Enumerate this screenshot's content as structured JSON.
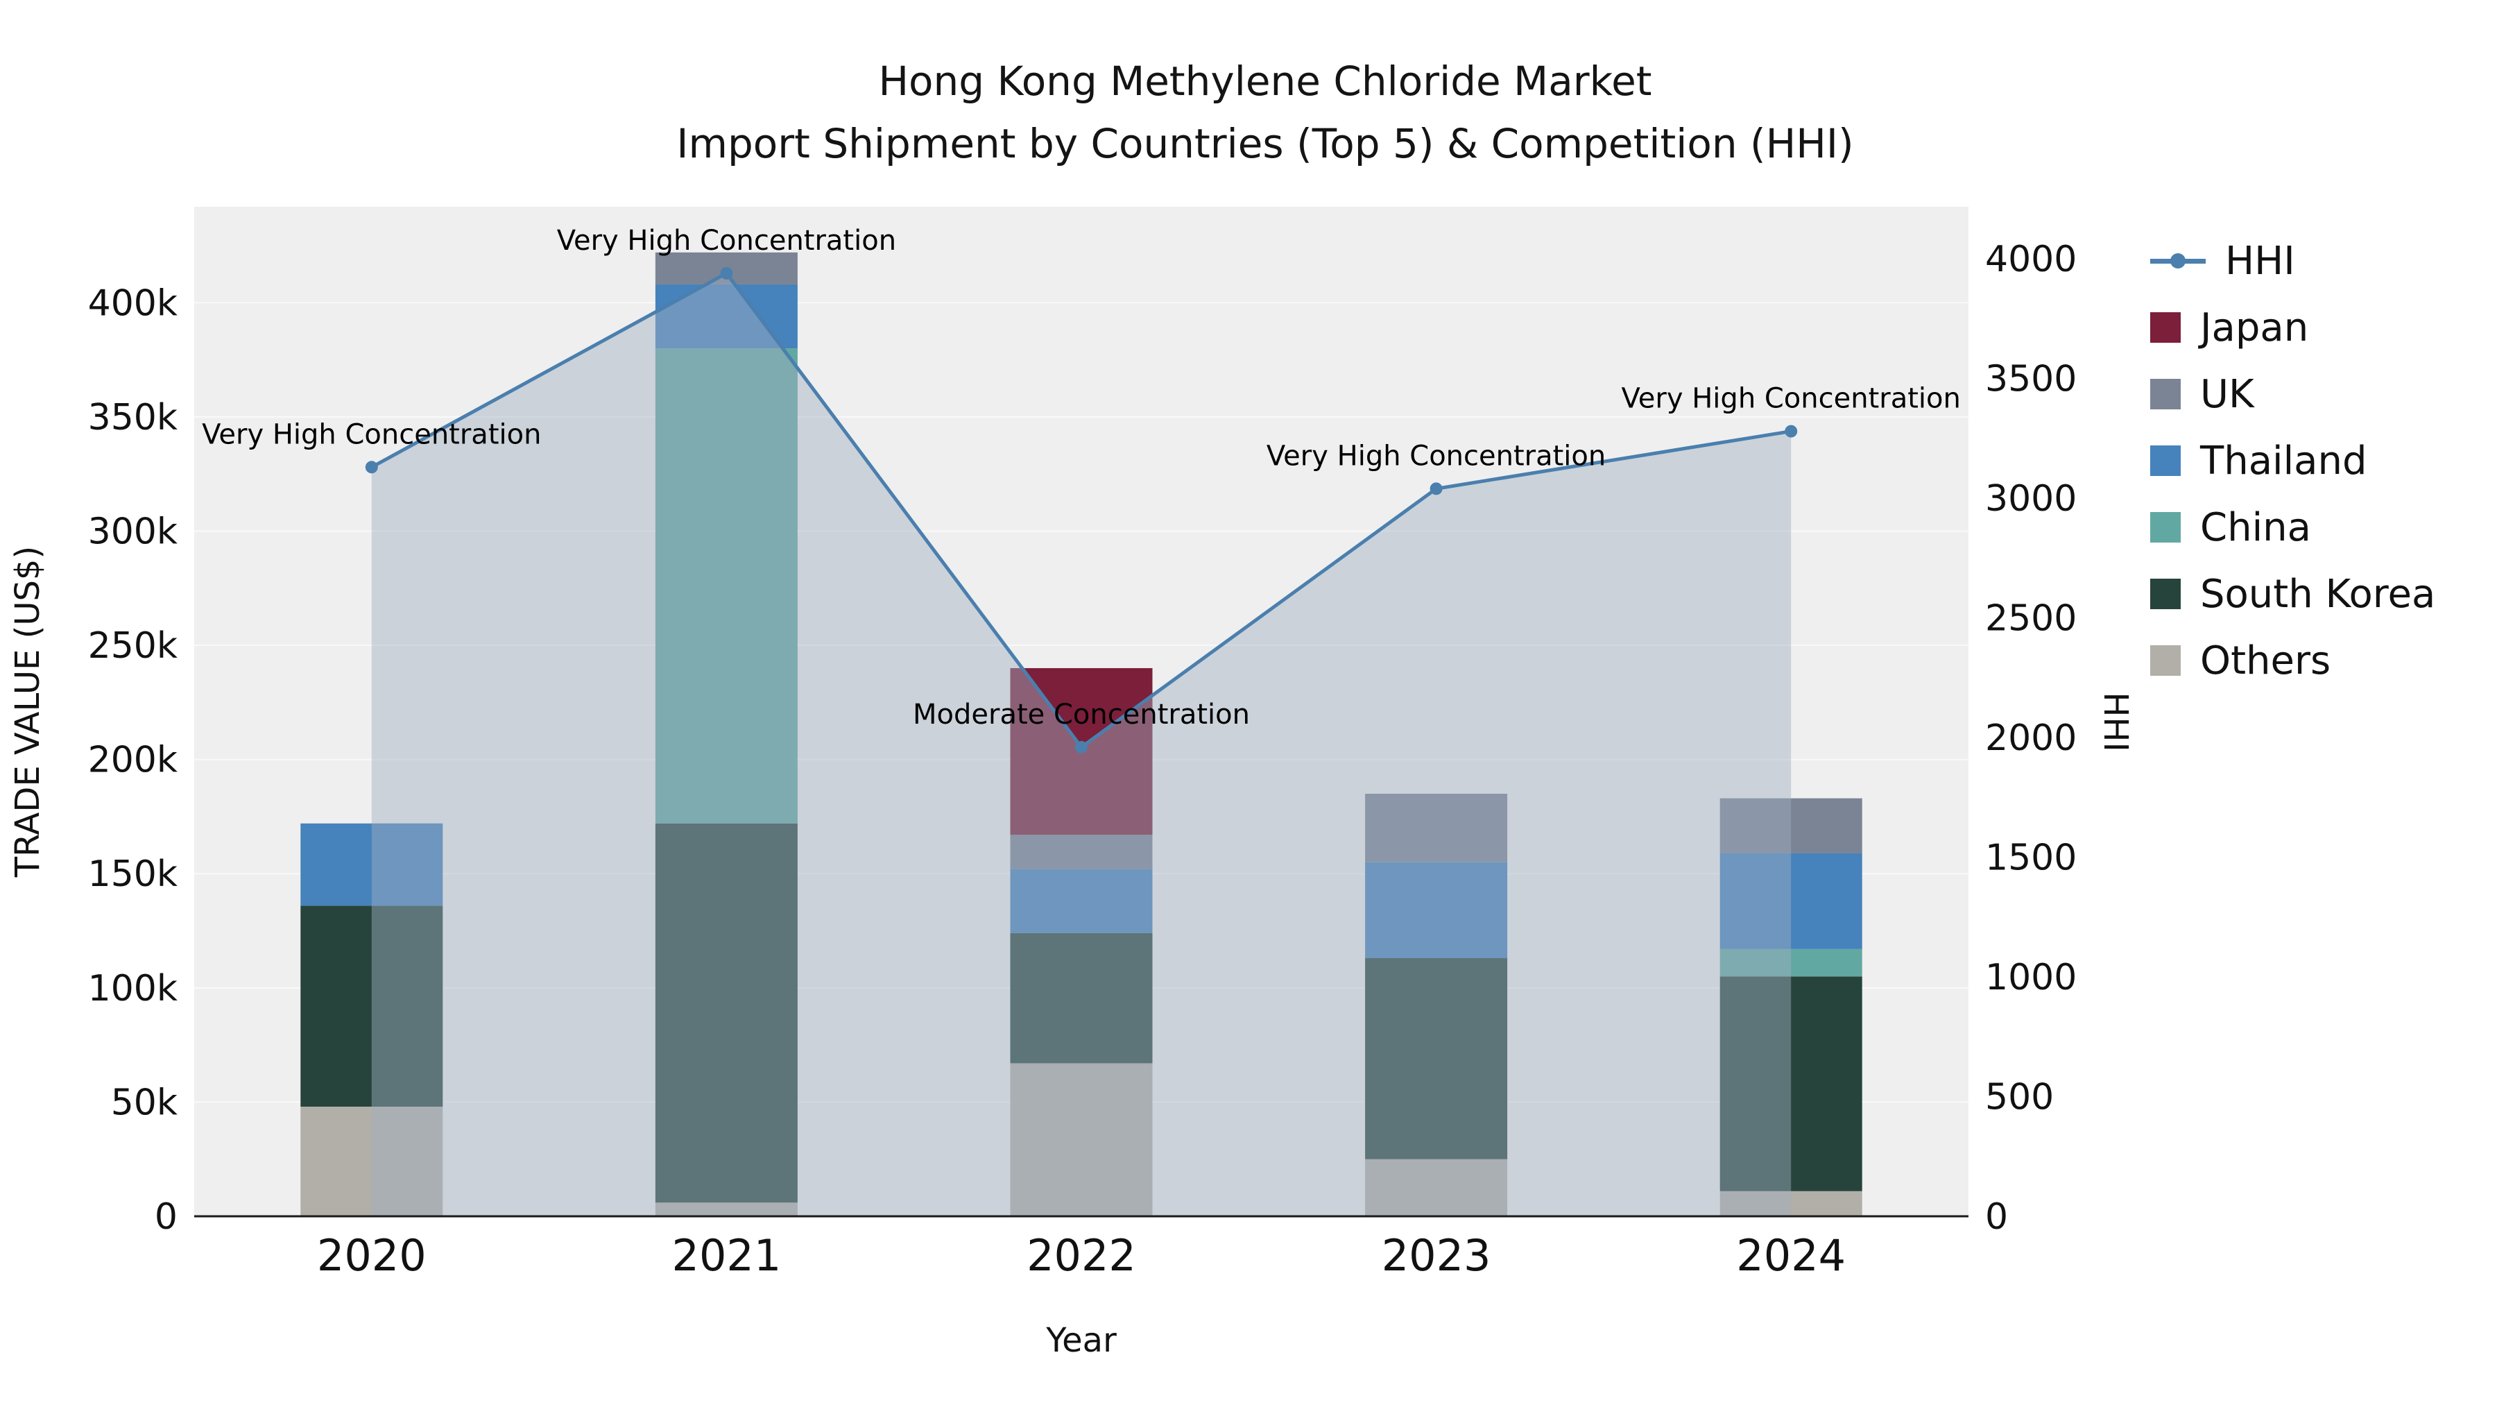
{
  "title": {
    "line1": "Hong Kong Methylene Chloride Market",
    "line2": "Import Shipment by Countries (Top 5) & Competition (HHI)"
  },
  "chart_data": {
    "type": "bar",
    "subtype": "stacked-bars-with-hhi-line-and-area",
    "categories": [
      "2020",
      "2021",
      "2022",
      "2023",
      "2024"
    ],
    "x_axis": {
      "title": "Year"
    },
    "left_axis": {
      "title": "TRADE VALUE (US$)",
      "tick_labels": [
        "0",
        "50k",
        "100k",
        "150k",
        "200k",
        "250k",
        "300k",
        "350k",
        "400k"
      ],
      "tick_values": [
        0,
        50000,
        100000,
        150000,
        200000,
        250000,
        300000,
        350000,
        400000
      ],
      "range": [
        0,
        442000
      ]
    },
    "right_axis": {
      "title": "HHI",
      "tick_labels": [
        "0",
        "500",
        "1000",
        "1500",
        "2000",
        "2500",
        "3000",
        "3500",
        "4000"
      ],
      "tick_values": [
        0,
        500,
        1000,
        1500,
        2000,
        2500,
        3000,
        3500,
        4000
      ],
      "range": [
        0,
        4218
      ]
    },
    "bar_series": [
      {
        "name": "Others",
        "color": "#b2afa9",
        "values": [
          48000,
          6000,
          67000,
          25000,
          11000
        ]
      },
      {
        "name": "South Korea",
        "color": "#27443c",
        "values": [
          88000,
          166000,
          57000,
          88000,
          94000
        ]
      },
      {
        "name": "China",
        "color": "#62a8a2",
        "values": [
          0,
          208000,
          0,
          0,
          12000
        ]
      },
      {
        "name": "Thailand",
        "color": "#4682bc",
        "values": [
          36000,
          28000,
          28000,
          42000,
          42000
        ]
      },
      {
        "name": "UK",
        "color": "#7a8494",
        "values": [
          0,
          14000,
          15000,
          30000,
          24000
        ]
      },
      {
        "name": "Japan",
        "color": "#7b1f3a",
        "values": [
          0,
          0,
          73000,
          0,
          0
        ]
      }
    ],
    "line_series": {
      "name": "HHI",
      "color": "#4a7fae",
      "area_fill": "rgba(160,175,192,0.45)",
      "values": [
        3130,
        3940,
        1960,
        3040,
        3280
      ]
    },
    "annotations": [
      {
        "year": "2020",
        "text": "Very High Concentration"
      },
      {
        "year": "2021",
        "text": "Very High Concentration"
      },
      {
        "year": "2022",
        "text": "Moderate Concentration"
      },
      {
        "year": "2023",
        "text": "Very High Concentration"
      },
      {
        "year": "2024",
        "text": "Very High Concentration"
      }
    ],
    "legend": [
      {
        "label": "HHI",
        "glyph": "line",
        "color": "#4a7fae"
      },
      {
        "label": "Japan",
        "glyph": "square",
        "color": "#7b1f3a"
      },
      {
        "label": "UK",
        "glyph": "square",
        "color": "#7a8494"
      },
      {
        "label": "Thailand",
        "glyph": "square",
        "color": "#4682bc"
      },
      {
        "label": "China",
        "glyph": "square",
        "color": "#62a8a2"
      },
      {
        "label": "South Korea",
        "glyph": "square",
        "color": "#27443c"
      },
      {
        "label": "Others",
        "glyph": "square",
        "color": "#b2afa9"
      }
    ]
  }
}
